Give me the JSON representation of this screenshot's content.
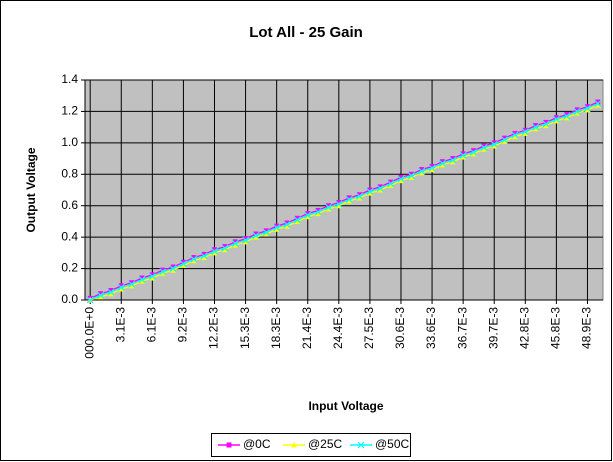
{
  "chart_data": {
    "type": "line",
    "title": "Lot All - 25 Gain",
    "x_label": "Input Voltage",
    "y_label": "Output Voltage",
    "categories": [
      "000.0E+0",
      null,
      null,
      "3.1E-3",
      null,
      null,
      "6.1E-3",
      null,
      null,
      "9.2E-3",
      null,
      null,
      "12.2E-3",
      null,
      null,
      "15.3E-3",
      null,
      null,
      "18.3E-3",
      null,
      null,
      "21.4E-3",
      null,
      null,
      "24.4E-3",
      null,
      null,
      "27.5E-3",
      null,
      null,
      "30.6E-3",
      null,
      null,
      "33.6E-3",
      null,
      null,
      "36.7E-3",
      null,
      null,
      "39.7E-3",
      null,
      null,
      "42.8E-3",
      null,
      null,
      "45.8E-3",
      null,
      null,
      "48.9E-3",
      null
    ],
    "series": [
      {
        "name": "@0C",
        "color": "#ff00ff",
        "marker": "square",
        "values": [
          0.01,
          0.04,
          0.06,
          0.09,
          0.11,
          0.14,
          0.16,
          0.19,
          0.21,
          0.24,
          0.27,
          0.29,
          0.32,
          0.34,
          0.37,
          0.39,
          0.42,
          0.44,
          0.47,
          0.49,
          0.52,
          0.55,
          0.57,
          0.6,
          0.62,
          0.65,
          0.67,
          0.7,
          0.72,
          0.75,
          0.78,
          0.8,
          0.83,
          0.85,
          0.88,
          0.9,
          0.93,
          0.95,
          0.98,
          1.0,
          1.03,
          1.06,
          1.08,
          1.11,
          1.13,
          1.16,
          1.18,
          1.21,
          1.23,
          1.26
        ]
      },
      {
        "name": "@25C",
        "color": "#ffff00",
        "marker": "triangle",
        "values": [
          0.0,
          0.02,
          0.04,
          0.07,
          0.09,
          0.12,
          0.14,
          0.17,
          0.19,
          0.22,
          0.25,
          0.27,
          0.3,
          0.32,
          0.35,
          0.37,
          0.4,
          0.42,
          0.45,
          0.47,
          0.5,
          0.53,
          0.55,
          0.58,
          0.6,
          0.63,
          0.65,
          0.68,
          0.7,
          0.73,
          0.76,
          0.78,
          0.81,
          0.83,
          0.86,
          0.88,
          0.91,
          0.93,
          0.96,
          0.98,
          1.01,
          1.04,
          1.06,
          1.09,
          1.11,
          1.14,
          1.16,
          1.19,
          1.21,
          1.24
        ]
      },
      {
        "name": "@50C",
        "color": "#00ffff",
        "marker": "x",
        "values": [
          0.0,
          0.03,
          0.05,
          0.08,
          0.1,
          0.13,
          0.15,
          0.18,
          0.2,
          0.23,
          0.26,
          0.28,
          0.31,
          0.33,
          0.36,
          0.38,
          0.41,
          0.43,
          0.46,
          0.48,
          0.51,
          0.54,
          0.56,
          0.59,
          0.61,
          0.64,
          0.66,
          0.69,
          0.71,
          0.74,
          0.77,
          0.79,
          0.82,
          0.84,
          0.87,
          0.89,
          0.92,
          0.94,
          0.97,
          0.99,
          1.02,
          1.05,
          1.07,
          1.1,
          1.12,
          1.15,
          1.17,
          1.2,
          1.22,
          1.25
        ]
      }
    ],
    "ylim": [
      0,
      1.4
    ],
    "yticks": [
      {
        "value": 0,
        "label": "0.0"
      },
      0.2,
      0.4,
      0.6,
      0.8,
      {
        "value": 1,
        "label": "1.0"
      },
      1.2,
      1.4
    ],
    "grid": true,
    "legend": "bottom",
    "plot_background": "#c0c0c0"
  }
}
